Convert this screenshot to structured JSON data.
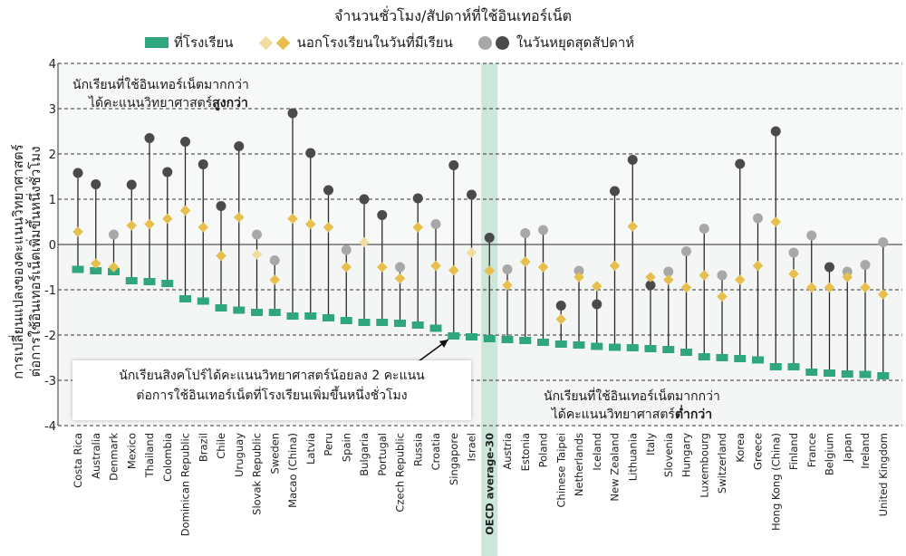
{
  "legend": {
    "title": "จำนวนชั่วโมง/สัปดาห์ที่ใช้อินเทอร์เน็ต",
    "items": [
      {
        "label": "ที่โรงเรียน",
        "symbol": "square",
        "color": "#2fa67f"
      },
      {
        "label": "นอกโรงเรียนในวันที่มีเรียน",
        "symbol": "diamond",
        "colors": [
          "#f3dca0",
          "#e6bf4c"
        ]
      },
      {
        "label": "ในวันหยุดสุดสัปดาห์",
        "symbol": "circle",
        "colors": [
          "#a8a8a8",
          "#4a4a4a"
        ]
      }
    ]
  },
  "y_axis_label": [
    "การเปลี่ยนแปลงของคะแนนวิทยาศาสตร์",
    "ต่อการใช้อินเทอร์เน็ตเพิ่มขึ้นหนึ่งชั่วโมง"
  ],
  "annotations": {
    "top_line1": "นักเรียนที่ใช้อินเทอร์เน็ตมากกว่า",
    "top_line2_prefix": "ได้คะแนนวิทยาศาสตร์",
    "top_line2_bold": "สูงกว่า",
    "bottom_line1": "นักเรียนที่ใช้อินเทอร์เน็ตมากกว่า",
    "bottom_line2_prefix": "ได้คะแนนวิทยาศาสตร์",
    "bottom_line2_bold": "ต่ำกว่า",
    "singapore_line1": "นักเรียนสิงคโปร์ได้คะแนนวิทยาศาสตร์น้อยลง 2 คะแนน",
    "singapore_line2": "ต่อการใช้อินเทอร์เน็ตที่โรงเรียนเพิ่มขึ้นหนึ่งชั่วโมง"
  },
  "colors": {
    "school": "#2fa67f",
    "diamond_sig": "#e6bf4c",
    "diamond_nonsig": "#f3dca0",
    "circle_sig": "#4a4a4a",
    "circle_nonsig": "#a8a8a8",
    "oecd_band": "#cde6da",
    "stem": "#2b2b2b"
  },
  "chart_data": {
    "type": "scatter",
    "ylim": [
      -4,
      4
    ],
    "yticks": [
      4,
      3,
      2,
      1,
      0,
      -1,
      -2,
      -3,
      -4
    ],
    "highlight_category": "OECD average-30",
    "categories": [
      "Costa Rica",
      "Australia",
      "Denmark",
      "Mexico",
      "Thailand",
      "Colombia",
      "Dominican Republic",
      "Brazil",
      "Chile",
      "Uruguay",
      "Slovak Republic",
      "Sweden",
      "Macao (China)",
      "Latvia",
      "Peru",
      "Spain",
      "Bulgaria",
      "Portugal",
      "Czech Republic",
      "Russia",
      "Croatia",
      "Singapore",
      "Israel",
      "OECD average-30",
      "Austria",
      "Estonia",
      "Poland",
      "Chinese Taipei",
      "Netherlands",
      "Iceland",
      "New Zealand",
      "Lithuania",
      "Italy",
      "Slovenia",
      "Hungary",
      "Luxembourg",
      "Switzerland",
      "Korea",
      "Greece",
      "Hong Kong (China)",
      "Finland",
      "France",
      "Belgium",
      "Japan",
      "Ireland",
      "United Kingdom"
    ],
    "series": [
      {
        "name": "ที่โรงเรียน",
        "values": [
          -0.55,
          -0.58,
          -0.6,
          -0.8,
          -0.82,
          -0.86,
          -1.2,
          -1.25,
          -1.4,
          -1.45,
          -1.5,
          -1.5,
          -1.58,
          -1.58,
          -1.62,
          -1.68,
          -1.72,
          -1.72,
          -1.74,
          -1.78,
          -1.85,
          -2.02,
          -2.04,
          -2.08,
          -2.1,
          -2.12,
          -2.16,
          -2.2,
          -2.22,
          -2.25,
          -2.27,
          -2.28,
          -2.3,
          -2.32,
          -2.38,
          -2.48,
          -2.5,
          -2.52,
          -2.55,
          -2.7,
          -2.7,
          -2.82,
          -2.84,
          -2.86,
          -2.87,
          -2.9
        ]
      },
      {
        "name": "นอกโรงเรียนในวันที่มีเรียน",
        "values": [
          0.28,
          -0.42,
          -0.5,
          0.42,
          0.45,
          0.57,
          0.75,
          0.38,
          -0.25,
          0.6,
          -0.22,
          -0.78,
          0.57,
          0.45,
          0.38,
          -0.5,
          0.05,
          -0.5,
          -0.75,
          0.38,
          -0.47,
          -0.57,
          -0.18,
          -0.58,
          -0.9,
          -0.38,
          -0.5,
          -1.65,
          -0.72,
          -0.92,
          -0.47,
          0.4,
          -0.72,
          -0.78,
          -0.95,
          -0.68,
          -1.15,
          -0.78,
          -0.47,
          0.5,
          -0.65,
          -0.95,
          -0.95,
          -0.72,
          -0.95,
          -1.1
        ],
        "significant": [
          true,
          true,
          true,
          true,
          true,
          true,
          true,
          true,
          true,
          true,
          false,
          true,
          true,
          true,
          true,
          true,
          false,
          true,
          true,
          true,
          true,
          true,
          false,
          true,
          true,
          true,
          true,
          true,
          true,
          true,
          true,
          true,
          true,
          true,
          true,
          true,
          true,
          true,
          true,
          true,
          true,
          true,
          true,
          true,
          true,
          true
        ]
      },
      {
        "name": "ในวันหยุดสุดสัปดาห์",
        "values": [
          1.58,
          1.33,
          0.22,
          1.32,
          2.35,
          1.6,
          2.27,
          1.77,
          0.85,
          2.17,
          0.22,
          -0.35,
          2.9,
          2.02,
          1.2,
          -0.12,
          1.0,
          0.65,
          -0.5,
          1.02,
          0.45,
          1.75,
          1.1,
          0.15,
          -0.55,
          0.25,
          0.32,
          -1.35,
          -0.58,
          -1.32,
          1.18,
          1.87,
          -0.9,
          -0.6,
          -0.15,
          0.35,
          -0.68,
          1.78,
          0.58,
          2.5,
          -0.18,
          0.2,
          -0.5,
          -0.6,
          -0.45,
          0.05
        ],
        "significant": [
          true,
          true,
          false,
          true,
          true,
          true,
          true,
          true,
          true,
          true,
          false,
          false,
          true,
          true,
          true,
          false,
          true,
          true,
          false,
          true,
          false,
          true,
          true,
          true,
          false,
          false,
          false,
          true,
          false,
          true,
          true,
          true,
          true,
          false,
          false,
          false,
          false,
          true,
          false,
          true,
          false,
          false,
          true,
          false,
          false,
          false
        ]
      }
    ]
  }
}
